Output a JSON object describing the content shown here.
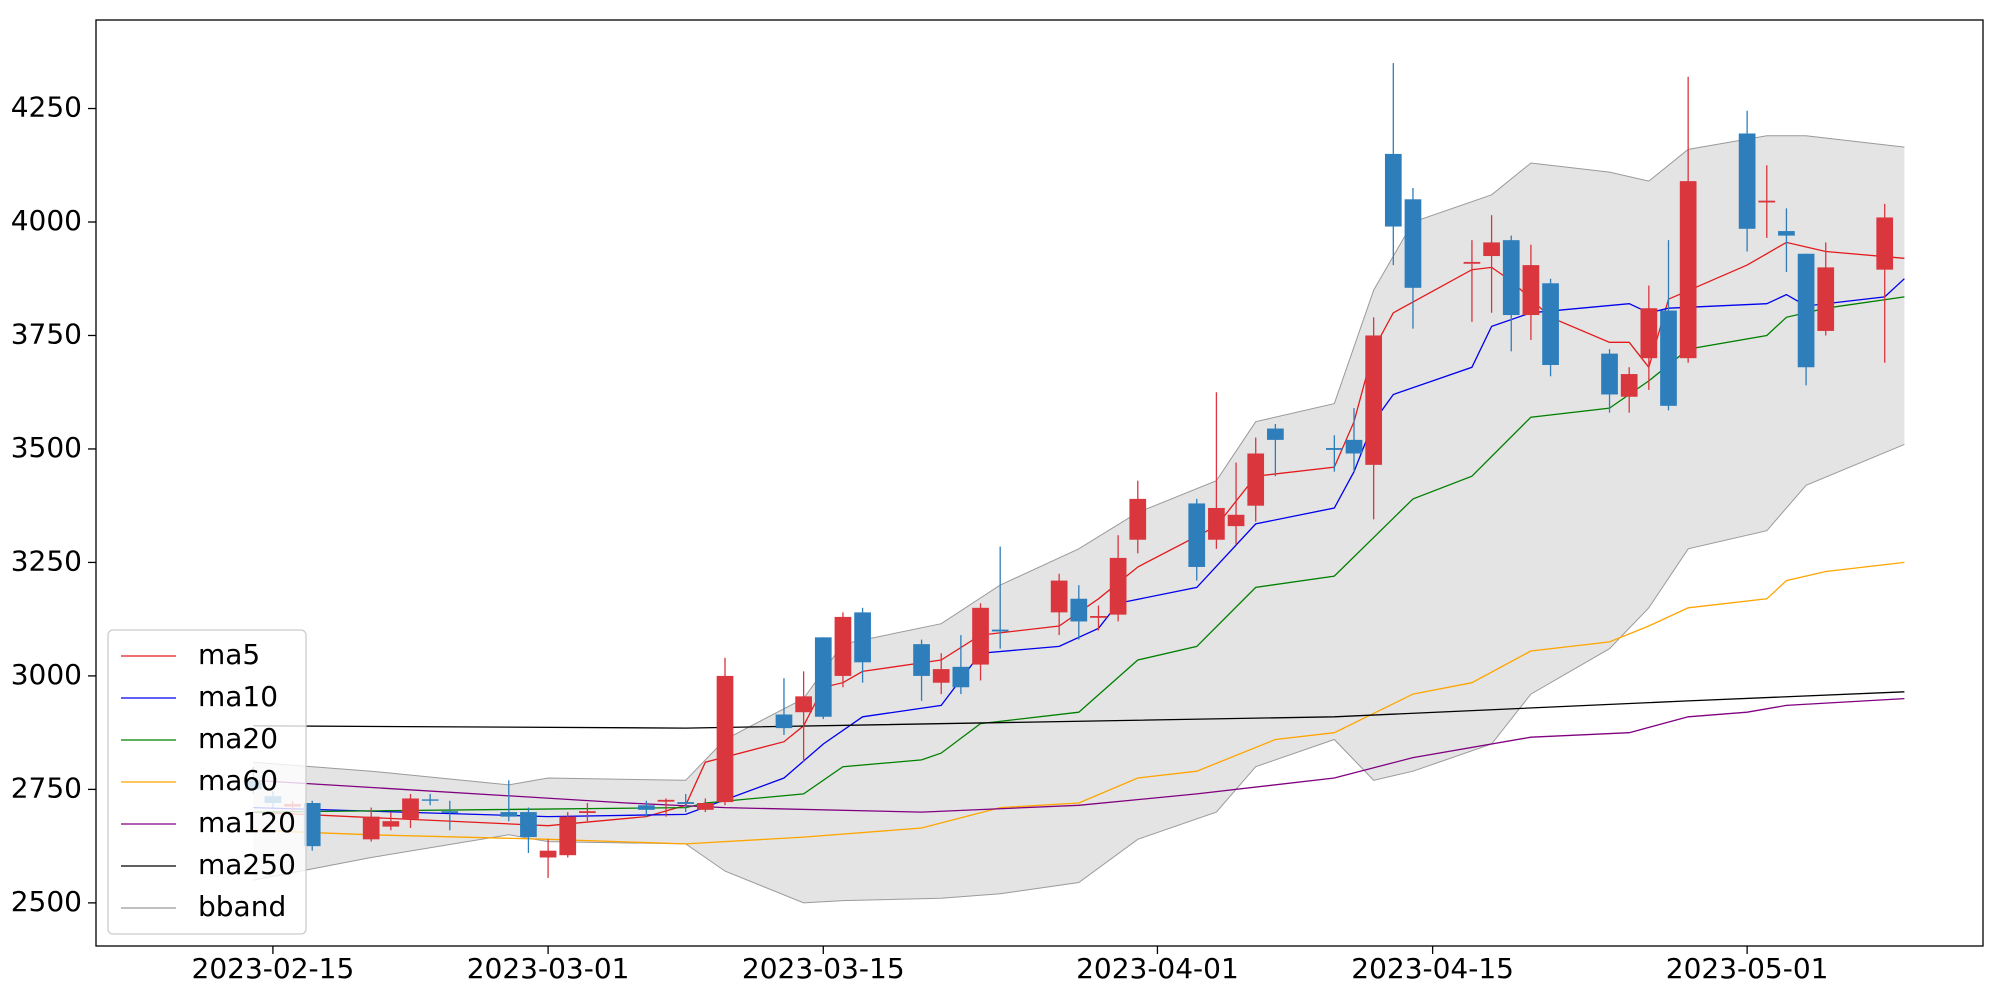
{
  "chart_data": {
    "type": "candlestick",
    "x": [
      "2023-02-14",
      "2023-02-15",
      "2023-02-16",
      "2023-02-17",
      "2023-02-20",
      "2023-02-21",
      "2023-02-22",
      "2023-02-23",
      "2023-02-24",
      "2023-02-27",
      "2023-02-28",
      "2023-03-01",
      "2023-03-02",
      "2023-03-03",
      "2023-03-06",
      "2023-03-07",
      "2023-03-08",
      "2023-03-09",
      "2023-03-10",
      "2023-03-13",
      "2023-03-14",
      "2023-03-15",
      "2023-03-16",
      "2023-03-17",
      "2023-03-20",
      "2023-03-21",
      "2023-03-22",
      "2023-03-23",
      "2023-03-24",
      "2023-03-27",
      "2023-03-28",
      "2023-03-29",
      "2023-03-30",
      "2023-03-31",
      "2023-04-03",
      "2023-04-04",
      "2023-04-05",
      "2023-04-06",
      "2023-04-07",
      "2023-04-10",
      "2023-04-11",
      "2023-04-12",
      "2023-04-13",
      "2023-04-14",
      "2023-04-17",
      "2023-04-18",
      "2023-04-19",
      "2023-04-20",
      "2023-04-21",
      "2023-04-24",
      "2023-04-25",
      "2023-04-26",
      "2023-04-27",
      "2023-04-28",
      "2023-05-01",
      "2023-05-02",
      "2023-05-03",
      "2023-05-04",
      "2023-05-05",
      "2023-05-08"
    ],
    "open": [
      2770,
      2735,
      2712,
      2720,
      2640,
      2668,
      2685,
      2728,
      2702,
      2700,
      2700,
      2600,
      2605,
      2698,
      2715,
      2723,
      2722,
      2705,
      2722,
      2915,
      2920,
      3085,
      3000,
      3140,
      3070,
      2985,
      3020,
      3025,
      3102,
      3140,
      3170,
      3128,
      3135,
      3300,
      3380,
      3300,
      3330,
      3375,
      3545,
      3502,
      3520,
      3465,
      4150,
      4050,
      3908,
      3925,
      3960,
      3795,
      3865,
      3710,
      3615,
      3700,
      3805,
      3700,
      4195,
      4043,
      3980,
      3930,
      3760,
      3895
    ],
    "high": [
      2800,
      2745,
      2725,
      2725,
      2710,
      2700,
      2740,
      2740,
      2725,
      2770,
      2710,
      2640,
      2700,
      2720,
      2725,
      2730,
      2740,
      2730,
      3040,
      2995,
      3010,
      3085,
      3140,
      3150,
      3080,
      3050,
      3090,
      3160,
      3285,
      3225,
      3200,
      3155,
      3310,
      3430,
      3390,
      3625,
      3470,
      3525,
      3555,
      3530,
      3590,
      3790,
      4350,
      4075,
      3960,
      4015,
      3970,
      3950,
      3875,
      3720,
      3680,
      3860,
      3960,
      4320,
      4245,
      4125,
      4030,
      3930,
      3955,
      4040
    ],
    "low": [
      2740,
      2710,
      2700,
      2615,
      2635,
      2660,
      2665,
      2715,
      2660,
      2680,
      2610,
      2555,
      2600,
      2680,
      2690,
      2690,
      2700,
      2700,
      2715,
      2870,
      2810,
      2905,
      2975,
      2985,
      2945,
      2960,
      2960,
      2990,
      3060,
      3090,
      3080,
      3100,
      3120,
      3270,
      3210,
      3280,
      3290,
      3340,
      3440,
      3450,
      3450,
      3345,
      3905,
      3765,
      3780,
      3800,
      3715,
      3740,
      3660,
      3580,
      3580,
      3630,
      3585,
      3690,
      3935,
      3965,
      3890,
      3640,
      3750,
      3690
    ],
    "close": [
      2750,
      2720,
      2718,
      2625,
      2690,
      2680,
      2730,
      2725,
      2698,
      2690,
      2645,
      2615,
      2690,
      2702,
      2705,
      2727,
      2718,
      2720,
      3000,
      2885,
      2955,
      2910,
      3130,
      3030,
      3000,
      3015,
      2975,
      3150,
      3098,
      3210,
      3120,
      3132,
      3260,
      3390,
      3240,
      3370,
      3355,
      3490,
      3520,
      3498,
      3490,
      3750,
      3990,
      3855,
      3912,
      3955,
      3795,
      3905,
      3685,
      3620,
      3665,
      3810,
      3595,
      4090,
      3985,
      4047,
      3970,
      3680,
      3900,
      4010
    ],
    "up_color": "#d9363e",
    "down_color": "#2e7ebc",
    "lines": [
      {
        "name": "ma5",
        "color": "#e41a1c",
        "x": [
          "2023-02-14",
          "2023-03-01",
          "2023-03-06",
          "2023-03-08",
          "2023-03-09",
          "2023-03-13",
          "2023-03-14",
          "2023-03-15",
          "2023-03-16",
          "2023-03-17",
          "2023-03-21",
          "2023-03-23",
          "2023-03-27",
          "2023-03-29",
          "2023-03-31",
          "2023-04-04",
          "2023-04-06",
          "2023-04-10",
          "2023-04-11",
          "2023-04-12",
          "2023-04-13",
          "2023-04-17",
          "2023-04-18",
          "2023-04-19",
          "2023-04-21",
          "2023-04-24",
          "2023-04-25",
          "2023-04-26",
          "2023-04-27",
          "2023-05-01",
          "2023-05-03",
          "2023-05-05",
          "2023-05-09"
        ],
        "values": [
          2700,
          2670,
          2690,
          2715,
          2810,
          2855,
          2890,
          2975,
          2985,
          3010,
          3035,
          3090,
          3110,
          3170,
          3240,
          3330,
          3440,
          3460,
          3560,
          3720,
          3800,
          3895,
          3900,
          3870,
          3790,
          3735,
          3735,
          3680,
          3830,
          3905,
          3955,
          3935,
          3920
        ]
      },
      {
        "name": "ma10",
        "color": "#0000ee",
        "x": [
          "2023-02-14",
          "2023-03-01",
          "2023-03-08",
          "2023-03-13",
          "2023-03-15",
          "2023-03-17",
          "2023-03-21",
          "2023-03-23",
          "2023-03-27",
          "2023-03-29",
          "2023-03-30",
          "2023-04-03",
          "2023-04-06",
          "2023-04-10",
          "2023-04-11",
          "2023-04-12",
          "2023-04-13",
          "2023-04-17",
          "2023-04-18",
          "2023-04-20",
          "2023-04-25",
          "2023-04-26",
          "2023-04-27",
          "2023-05-02",
          "2023-05-03",
          "2023-05-04",
          "2023-05-08",
          "2023-05-09"
        ],
        "values": [
          2710,
          2690,
          2695,
          2775,
          2850,
          2910,
          2935,
          3050,
          3065,
          3105,
          3160,
          3195,
          3335,
          3370,
          3450,
          3560,
          3620,
          3680,
          3770,
          3800,
          3820,
          3800,
          3810,
          3820,
          3840,
          3815,
          3835,
          3875
        ]
      },
      {
        "name": "ma20",
        "color": "#008000",
        "x": [
          "2023-02-14",
          "2023-03-08",
          "2023-03-09",
          "2023-03-14",
          "2023-03-16",
          "2023-03-20",
          "2023-03-21",
          "2023-03-23",
          "2023-03-28",
          "2023-03-31",
          "2023-04-03",
          "2023-04-06",
          "2023-04-10",
          "2023-04-14",
          "2023-04-17",
          "2023-04-20",
          "2023-04-24",
          "2023-04-26",
          "2023-04-28",
          "2023-05-02",
          "2023-05-03",
          "2023-05-05",
          "2023-05-09"
        ],
        "values": [
          2700,
          2710,
          2720,
          2740,
          2800,
          2815,
          2830,
          2895,
          2920,
          3035,
          3065,
          3195,
          3220,
          3390,
          3440,
          3570,
          3590,
          3650,
          3720,
          3750,
          3790,
          3810,
          3835
        ]
      },
      {
        "name": "ma60",
        "color": "#ffa500",
        "x": [
          "2023-02-14",
          "2023-02-20",
          "2023-03-01",
          "2023-03-08",
          "2023-03-14",
          "2023-03-20",
          "2023-03-24",
          "2023-03-28",
          "2023-03-31",
          "2023-04-03",
          "2023-04-07",
          "2023-04-10",
          "2023-04-14",
          "2023-04-17",
          "2023-04-20",
          "2023-04-24",
          "2023-04-26",
          "2023-04-28",
          "2023-05-02",
          "2023-05-03",
          "2023-05-05",
          "2023-05-09"
        ],
        "values": [
          2660,
          2650,
          2640,
          2630,
          2645,
          2665,
          2710,
          2720,
          2775,
          2790,
          2860,
          2875,
          2960,
          2985,
          3055,
          3075,
          3110,
          3150,
          3170,
          3210,
          3230,
          3250
        ]
      },
      {
        "name": "ma120",
        "color": "#800080",
        "x": [
          "2023-02-14",
          "2023-03-05",
          "2023-03-10",
          "2023-03-20",
          "2023-03-28",
          "2023-04-03",
          "2023-04-10",
          "2023-04-14",
          "2023-04-20",
          "2023-04-25",
          "2023-04-28",
          "2023-05-01",
          "2023-05-03",
          "2023-05-09"
        ],
        "values": [
          2770,
          2720,
          2710,
          2700,
          2715,
          2740,
          2775,
          2820,
          2865,
          2875,
          2910,
          2920,
          2935,
          2950
        ]
      },
      {
        "name": "ma250",
        "color": "#000000",
        "x": [
          "2023-02-14",
          "2023-03-08",
          "2023-04-10",
          "2023-04-28",
          "2023-05-09"
        ],
        "values": [
          2890,
          2885,
          2910,
          2945,
          2965
        ]
      }
    ],
    "bband": {
      "name": "bband",
      "color": "#9a9a9a",
      "fill": "#e4e4e4",
      "x": [
        "2023-02-14",
        "2023-02-20",
        "2023-02-27",
        "2023-03-01",
        "2023-03-08",
        "2023-03-10",
        "2023-03-14",
        "2023-03-16",
        "2023-03-21",
        "2023-03-24",
        "2023-03-28",
        "2023-03-31",
        "2023-04-04",
        "2023-04-06",
        "2023-04-10",
        "2023-04-12",
        "2023-04-14",
        "2023-04-18",
        "2023-04-20",
        "2023-04-24",
        "2023-04-26",
        "2023-04-28",
        "2023-05-02",
        "2023-05-04",
        "2023-05-09"
      ],
      "upper": [
        2810,
        2790,
        2760,
        2775,
        2770,
        2860,
        2950,
        3070,
        3115,
        3200,
        3280,
        3360,
        3430,
        3560,
        3600,
        3850,
        4000,
        4060,
        4130,
        4110,
        4090,
        4160,
        4190,
        4190,
        4165
      ],
      "lower": [
        2550,
        2600,
        2650,
        2635,
        2630,
        2570,
        2500,
        2505,
        2510,
        2520,
        2545,
        2640,
        2700,
        2800,
        2860,
        2770,
        2790,
        2850,
        2960,
        3060,
        3150,
        3280,
        3320,
        3420,
        3510
      ]
    },
    "xlim": [
      "2023-02-06",
      "2023-05-13"
    ],
    "ylim": [
      2405,
      4445
    ],
    "xticks": [
      "2023-02-15",
      "2023-03-01",
      "2023-03-15",
      "2023-04-01",
      "2023-04-15",
      "2023-05-01"
    ],
    "yticks": [
      2500,
      2750,
      3000,
      3250,
      3500,
      3750,
      4000,
      4250
    ],
    "legend": "lower left"
  }
}
